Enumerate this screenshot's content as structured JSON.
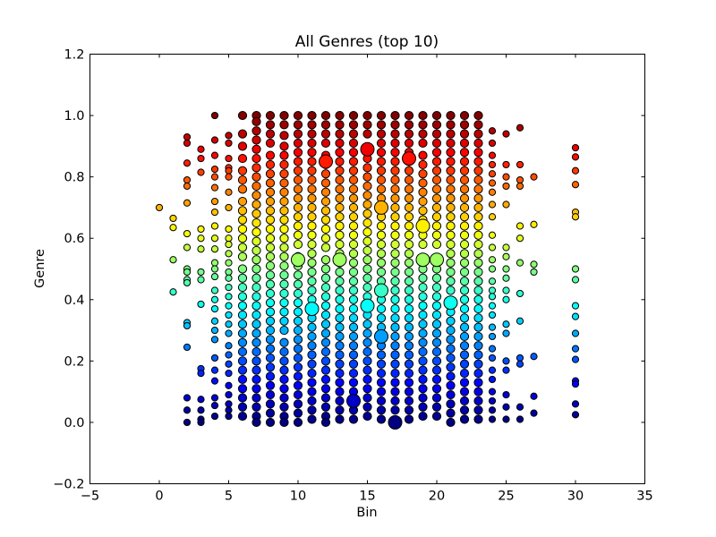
{
  "chart_data": {
    "type": "scatter",
    "title": "All Genres (top 10)",
    "xlabel": "Bin",
    "ylabel": "Genre",
    "xlim": [
      -5,
      35
    ],
    "ylim": [
      -0.2,
      1.2
    ],
    "xticks": [
      "−5",
      "0",
      "5",
      "10",
      "15",
      "20",
      "25",
      "30",
      "35"
    ],
    "yticks": [
      "−0.2",
      "0.0",
      "0.2",
      "0.4",
      "0.6",
      "0.8",
      "1.0",
      "1.2"
    ],
    "xtick_values": [
      -5,
      0,
      5,
      10,
      15,
      20,
      25,
      30,
      35
    ],
    "ytick_values": [
      -0.2,
      0.0,
      0.2,
      0.4,
      0.6,
      0.8,
      1.0,
      1.2
    ],
    "colormap": "jet (color encodes Genre value)",
    "grid": false,
    "legend": "none",
    "columns": [
      {
        "x": 0,
        "y": [
          0.7
        ]
      },
      {
        "x": 1,
        "y": [
          0.665,
          0.635,
          0.53,
          0.425
        ]
      },
      {
        "x": 2,
        "y": [
          0.93,
          0.91,
          0.845,
          0.79,
          0.77,
          0.715,
          0.615,
          0.57,
          0.5,
          0.49,
          0.465,
          0.455,
          0.325,
          0.315,
          0.245,
          0.08,
          0.04,
          0.0
        ]
      },
      {
        "x": 3,
        "y": [
          0.89,
          0.86,
          0.815,
          0.63,
          0.6,
          0.565,
          0.49,
          0.465,
          0.385,
          0.175,
          0.16,
          0.075,
          0.04,
          0.01,
          0.0
        ]
      },
      {
        "x": 4,
        "y": [
          1.0,
          0.92,
          0.87,
          0.825,
          0.8,
          0.765,
          0.72,
          0.685,
          0.64,
          0.6,
          0.565,
          0.52,
          0.5,
          0.475,
          0.43,
          0.4,
          0.37,
          0.33,
          0.3,
          0.27,
          0.21,
          0.17,
          0.135,
          0.08,
          0.055,
          0.02
        ]
      },
      {
        "x": 5,
        "y": [
          0.935,
          0.91,
          0.86,
          0.83,
          0.82,
          0.8,
          0.75,
          0.7,
          0.63,
          0.6,
          0.58,
          0.55,
          0.52,
          0.49,
          0.47,
          0.44,
          0.41,
          0.38,
          0.35,
          0.32,
          0.29,
          0.25,
          0.22,
          0.19,
          0.16,
          0.12,
          0.09,
          0.06,
          0.04,
          0.02
        ]
      },
      {
        "x": 6,
        "y": [
          1.0,
          0.94,
          0.9,
          0.86,
          0.82,
          0.79,
          0.76,
          0.72,
          0.69,
          0.66,
          0.63,
          0.6,
          0.57,
          0.54,
          0.5,
          0.47,
          0.44,
          0.41,
          0.38,
          0.35,
          0.32,
          0.29,
          0.26,
          0.23,
          0.2,
          0.17,
          0.14,
          0.11,
          0.08,
          0.05,
          0.02
        ]
      },
      {
        "x": 7,
        "y": [
          1.0,
          0.98,
          0.95,
          0.92,
          0.89,
          0.86,
          0.83,
          0.8,
          0.77,
          0.74,
          0.71,
          0.68,
          0.65,
          0.62,
          0.59,
          0.56,
          0.53,
          0.5,
          0.47,
          0.44,
          0.41,
          0.38,
          0.35,
          0.32,
          0.29,
          0.26,
          0.23,
          0.2,
          0.17,
          0.14,
          0.11,
          0.08,
          0.05,
          0.02,
          0.0
        ]
      },
      {
        "x": 8,
        "y": [
          1.0,
          0.97,
          0.94,
          0.91,
          0.87,
          0.84,
          0.81,
          0.78,
          0.75,
          0.72,
          0.69,
          0.66,
          0.63,
          0.6,
          0.57,
          0.54,
          0.51,
          0.48,
          0.45,
          0.42,
          0.39,
          0.36,
          0.33,
          0.3,
          0.27,
          0.24,
          0.21,
          0.18,
          0.15,
          0.12,
          0.09,
          0.06,
          0.03,
          0.0
        ]
      },
      {
        "x": 9,
        "y": [
          1.0,
          0.97,
          0.935,
          0.9,
          0.87,
          0.84,
          0.81,
          0.78,
          0.75,
          0.72,
          0.69,
          0.66,
          0.63,
          0.6,
          0.57,
          0.54,
          0.51,
          0.48,
          0.45,
          0.42,
          0.39,
          0.36,
          0.33,
          0.3,
          0.26,
          0.23,
          0.2,
          0.17,
          0.14,
          0.11,
          0.08,
          0.05,
          0.02,
          0.0
        ]
      },
      {
        "x": 10,
        "y": [
          1.0,
          0.97,
          0.94,
          0.91,
          0.88,
          0.85,
          0.82,
          0.79,
          0.76,
          0.73,
          0.7,
          0.67,
          0.64,
          0.61,
          0.58,
          0.54,
          0.51,
          0.48,
          0.45,
          0.42,
          0.39,
          0.36,
          0.33,
          0.3,
          0.27,
          0.24,
          0.21,
          0.18,
          0.15,
          0.12,
          0.09,
          0.06,
          0.03,
          0.0
        ]
      },
      {
        "x": 11,
        "y": [
          1.0,
          0.97,
          0.94,
          0.91,
          0.88,
          0.85,
          0.82,
          0.79,
          0.76,
          0.73,
          0.7,
          0.67,
          0.64,
          0.61,
          0.58,
          0.55,
          0.52,
          0.49,
          0.46,
          0.43,
          0.4,
          0.37,
          0.34,
          0.31,
          0.28,
          0.25,
          0.22,
          0.19,
          0.16,
          0.13,
          0.1,
          0.07,
          0.04,
          0.01
        ]
      },
      {
        "x": 12,
        "y": [
          1.0,
          0.97,
          0.94,
          0.91,
          0.87,
          0.84,
          0.81,
          0.78,
          0.75,
          0.72,
          0.69,
          0.66,
          0.63,
          0.6,
          0.57,
          0.53,
          0.5,
          0.47,
          0.44,
          0.41,
          0.38,
          0.35,
          0.32,
          0.29,
          0.26,
          0.23,
          0.2,
          0.17,
          0.14,
          0.11,
          0.08,
          0.05,
          0.02,
          0.0
        ]
      },
      {
        "x": 13,
        "y": [
          1.0,
          0.97,
          0.94,
          0.91,
          0.88,
          0.85,
          0.82,
          0.79,
          0.76,
          0.73,
          0.7,
          0.67,
          0.64,
          0.61,
          0.58,
          0.55,
          0.52,
          0.49,
          0.46,
          0.43,
          0.4,
          0.37,
          0.34,
          0.31,
          0.28,
          0.25,
          0.22,
          0.19,
          0.16,
          0.13,
          0.1,
          0.07,
          0.04,
          0.01
        ]
      },
      {
        "x": 14,
        "y": [
          1.0,
          0.97,
          0.94,
          0.91,
          0.88,
          0.85,
          0.82,
          0.79,
          0.76,
          0.73,
          0.7,
          0.67,
          0.64,
          0.61,
          0.58,
          0.55,
          0.52,
          0.49,
          0.46,
          0.43,
          0.4,
          0.37,
          0.34,
          0.31,
          0.28,
          0.25,
          0.22,
          0.19,
          0.16,
          0.13,
          0.1,
          0.07,
          0.04,
          0.01
        ]
      },
      {
        "x": 15,
        "y": [
          1.0,
          0.97,
          0.94,
          0.89,
          0.86,
          0.83,
          0.8,
          0.77,
          0.74,
          0.71,
          0.68,
          0.65,
          0.62,
          0.59,
          0.56,
          0.53,
          0.5,
          0.47,
          0.44,
          0.41,
          0.38,
          0.35,
          0.32,
          0.29,
          0.26,
          0.23,
          0.2,
          0.17,
          0.14,
          0.11,
          0.08,
          0.05,
          0.02
        ]
      },
      {
        "x": 16,
        "y": [
          1.0,
          0.97,
          0.94,
          0.91,
          0.88,
          0.85,
          0.82,
          0.79,
          0.76,
          0.73,
          0.7,
          0.67,
          0.64,
          0.61,
          0.58,
          0.55,
          0.52,
          0.49,
          0.46,
          0.43,
          0.4,
          0.37,
          0.34,
          0.31,
          0.28,
          0.25,
          0.22,
          0.19,
          0.16,
          0.13,
          0.1,
          0.07,
          0.04,
          0.01
        ]
      },
      {
        "x": 17,
        "y": [
          1.0,
          0.97,
          0.94,
          0.91,
          0.88,
          0.85,
          0.82,
          0.79,
          0.76,
          0.73,
          0.7,
          0.67,
          0.64,
          0.61,
          0.58,
          0.55,
          0.52,
          0.49,
          0.46,
          0.43,
          0.4,
          0.37,
          0.34,
          0.31,
          0.28,
          0.25,
          0.22,
          0.19,
          0.16,
          0.13,
          0.1,
          0.07,
          0.04,
          0.0
        ]
      },
      {
        "x": 18,
        "y": [
          1.0,
          0.97,
          0.94,
          0.91,
          0.88,
          0.85,
          0.82,
          0.79,
          0.76,
          0.73,
          0.7,
          0.67,
          0.64,
          0.61,
          0.58,
          0.55,
          0.52,
          0.49,
          0.46,
          0.43,
          0.4,
          0.37,
          0.34,
          0.31,
          0.28,
          0.25,
          0.22,
          0.19,
          0.16,
          0.13,
          0.1,
          0.07,
          0.04,
          0.01
        ]
      },
      {
        "x": 19,
        "y": [
          1.0,
          0.97,
          0.94,
          0.91,
          0.87,
          0.84,
          0.81,
          0.78,
          0.75,
          0.72,
          0.69,
          0.66,
          0.64,
          0.61,
          0.58,
          0.53,
          0.5,
          0.47,
          0.44,
          0.41,
          0.38,
          0.35,
          0.32,
          0.29,
          0.26,
          0.23,
          0.2,
          0.17,
          0.14,
          0.11,
          0.08,
          0.05,
          0.02
        ]
      },
      {
        "x": 20,
        "y": [
          1.0,
          0.97,
          0.94,
          0.91,
          0.88,
          0.85,
          0.82,
          0.79,
          0.76,
          0.73,
          0.7,
          0.67,
          0.64,
          0.61,
          0.58,
          0.53,
          0.5,
          0.47,
          0.44,
          0.41,
          0.38,
          0.35,
          0.32,
          0.29,
          0.26,
          0.23,
          0.2,
          0.17,
          0.14,
          0.11,
          0.08,
          0.05,
          0.02
        ]
      },
      {
        "x": 21,
        "y": [
          1.0,
          0.97,
          0.94,
          0.91,
          0.88,
          0.85,
          0.82,
          0.79,
          0.76,
          0.73,
          0.7,
          0.67,
          0.64,
          0.61,
          0.58,
          0.55,
          0.52,
          0.49,
          0.46,
          0.43,
          0.39,
          0.36,
          0.33,
          0.3,
          0.27,
          0.24,
          0.21,
          0.18,
          0.15,
          0.12,
          0.09,
          0.06,
          0.03,
          0.0
        ]
      },
      {
        "x": 22,
        "y": [
          1.0,
          0.97,
          0.94,
          0.91,
          0.88,
          0.85,
          0.82,
          0.79,
          0.76,
          0.73,
          0.7,
          0.67,
          0.64,
          0.61,
          0.58,
          0.55,
          0.52,
          0.49,
          0.46,
          0.43,
          0.4,
          0.37,
          0.34,
          0.31,
          0.28,
          0.25,
          0.22,
          0.19,
          0.16,
          0.13,
          0.1,
          0.07,
          0.04,
          0.01
        ]
      },
      {
        "x": 23,
        "y": [
          1.0,
          0.97,
          0.94,
          0.91,
          0.88,
          0.85,
          0.82,
          0.79,
          0.76,
          0.73,
          0.7,
          0.67,
          0.64,
          0.61,
          0.58,
          0.55,
          0.52,
          0.49,
          0.46,
          0.43,
          0.4,
          0.37,
          0.34,
          0.31,
          0.28,
          0.25,
          0.22,
          0.19,
          0.16,
          0.13,
          0.1,
          0.07,
          0.04,
          0.01
        ]
      },
      {
        "x": 24,
        "y": [
          0.95,
          0.91,
          0.87,
          0.84,
          0.81,
          0.78,
          0.75,
          0.71,
          0.67,
          0.61,
          0.57,
          0.53,
          0.5,
          0.46,
          0.43,
          0.41,
          0.38,
          0.35,
          0.31,
          0.28,
          0.24,
          0.21,
          0.17,
          0.14,
          0.1,
          0.07,
          0.04,
          0.01
        ]
      },
      {
        "x": 25,
        "y": [
          0.94,
          0.84,
          0.8,
          0.77,
          0.71,
          0.57,
          0.54,
          0.5,
          0.47,
          0.43,
          0.4,
          0.32,
          0.29,
          0.2,
          0.17,
          0.09,
          0.05,
          0.01
        ]
      },
      {
        "x": 26,
        "y": [
          0.96,
          0.84,
          0.79,
          0.77,
          0.64,
          0.6,
          0.52,
          0.42,
          0.33,
          0.21,
          0.19,
          0.05,
          0.01
        ]
      },
      {
        "x": 27,
        "y": [
          0.8,
          0.645,
          0.515,
          0.49,
          0.215,
          0.085,
          0.03
        ]
      },
      {
        "x": 30,
        "y": [
          0.895,
          0.865,
          0.82,
          0.775,
          0.685,
          0.67,
          0.5,
          0.465,
          0.38,
          0.345,
          0.29,
          0.24,
          0.205,
          0.135,
          0.125,
          0.06,
          0.025
        ]
      }
    ],
    "large_points": [
      {
        "x": 14,
        "y": 0.07
      },
      {
        "x": 15,
        "y": 0.89
      },
      {
        "x": 16,
        "y": 0.7
      },
      {
        "x": 17,
        "y": 0.0
      },
      {
        "x": 19,
        "y": 0.53
      },
      {
        "x": 20,
        "y": 0.53
      },
      {
        "x": 21,
        "y": 0.39
      },
      {
        "x": 16,
        "y": 0.43
      },
      {
        "x": 16,
        "y": 0.28
      },
      {
        "x": 15,
        "y": 0.38
      },
      {
        "x": 13,
        "y": 0.53
      },
      {
        "x": 10,
        "y": 0.53
      },
      {
        "x": 12,
        "y": 0.85
      },
      {
        "x": 18,
        "y": 0.86
      },
      {
        "x": 19,
        "y": 0.64
      },
      {
        "x": 11,
        "y": 0.37
      }
    ]
  }
}
